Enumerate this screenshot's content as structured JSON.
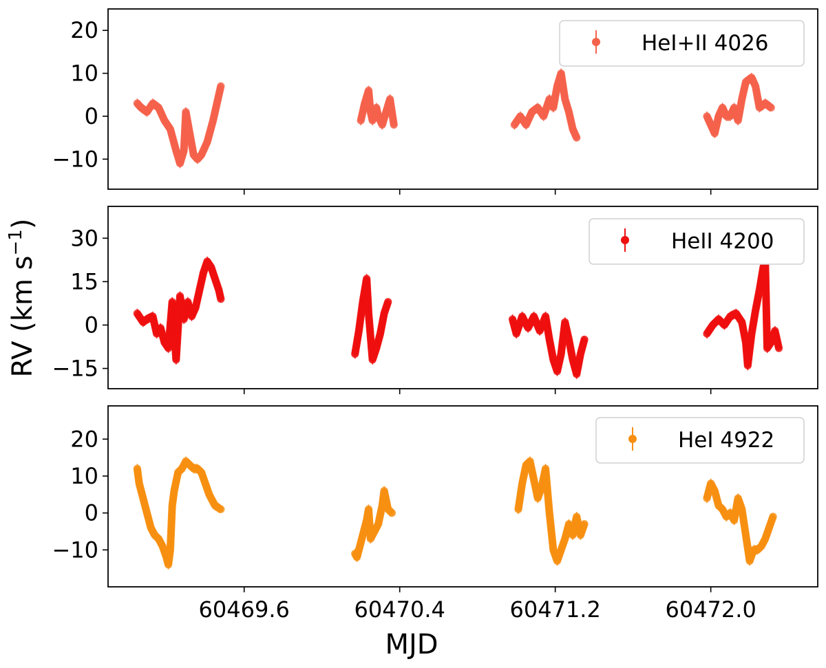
{
  "chart_data": {
    "type": "scatter",
    "layout": "3 stacked panels, shared x axis",
    "xlabel": "MJD",
    "ylabel": "RV (km s",
    "ylabel_superscript": "−1",
    "ylabel_close": ")",
    "xlim": [
      60468.9,
      60472.55
    ],
    "xticks": [
      60469.6,
      60470.4,
      60471.2,
      60472.0
    ],
    "xtick_labels": [
      "60469.6",
      "60470.4",
      "60471.2",
      "60472.0"
    ],
    "markers": "filled circles with vertical error bars",
    "legend_position": "upper right",
    "panels": [
      {
        "legend": "HeI+II 4026",
        "color": "#f4624b",
        "ylim": [
          -17,
          25
        ],
        "yticks": [
          -10,
          0,
          10,
          20
        ],
        "ytick_labels": [
          "−10",
          "0",
          "10",
          "20"
        ],
        "nights": [
          [
            [
              60469.05,
              3
            ],
            [
              60469.07,
              2
            ],
            [
              60469.1,
              1
            ],
            [
              60469.13,
              3
            ],
            [
              60469.16,
              2
            ],
            [
              60469.19,
              -1
            ],
            [
              60469.22,
              -3
            ],
            [
              60469.25,
              -8
            ],
            [
              60469.27,
              -11
            ],
            [
              60469.29,
              -8
            ],
            [
              60469.3,
              1
            ],
            [
              60469.32,
              -4
            ],
            [
              60469.34,
              -9
            ],
            [
              60469.36,
              -10
            ],
            [
              60469.38,
              -9
            ],
            [
              60469.41,
              -6
            ],
            [
              60469.44,
              -1
            ],
            [
              60469.46,
              3
            ],
            [
              60469.48,
              7
            ]
          ],
          [
            [
              60470.2,
              -1
            ],
            [
              60470.22,
              3
            ],
            [
              60470.24,
              6
            ],
            [
              60470.25,
              1
            ],
            [
              60470.26,
              -1
            ],
            [
              60470.28,
              2
            ],
            [
              60470.29,
              0
            ],
            [
              60470.31,
              -2
            ],
            [
              60470.33,
              1
            ],
            [
              60470.35,
              4
            ],
            [
              60470.37,
              -2
            ]
          ],
          [
            [
              60470.99,
              -2
            ],
            [
              60471.02,
              0
            ],
            [
              60471.05,
              -2
            ],
            [
              60471.08,
              1
            ],
            [
              60471.11,
              2
            ],
            [
              60471.14,
              0
            ],
            [
              60471.17,
              4
            ],
            [
              60471.19,
              2
            ],
            [
              60471.21,
              7
            ],
            [
              60471.23,
              10
            ],
            [
              60471.25,
              4
            ],
            [
              60471.27,
              1
            ],
            [
              60471.29,
              -3
            ],
            [
              60471.31,
              -5
            ]
          ],
          [
            [
              60471.98,
              0
            ],
            [
              60472.0,
              -2
            ],
            [
              60472.02,
              -4
            ],
            [
              60472.04,
              0
            ],
            [
              60472.06,
              2
            ],
            [
              60472.08,
              0
            ],
            [
              60472.1,
              0
            ],
            [
              60472.12,
              2
            ],
            [
              60472.14,
              -1
            ],
            [
              60472.16,
              4
            ],
            [
              60472.18,
              8
            ],
            [
              60472.21,
              9
            ],
            [
              60472.23,
              7
            ],
            [
              60472.25,
              2
            ],
            [
              60472.28,
              3
            ],
            [
              60472.31,
              2
            ]
          ]
        ]
      },
      {
        "legend": "HeII 4200",
        "color": "#ee0f0f",
        "ylim": [
          -22,
          41
        ],
        "yticks": [
          -15,
          0,
          15,
          30
        ],
        "ytick_labels": [
          "−15",
          "0",
          "15",
          "30"
        ],
        "nights": [
          [
            [
              60469.05,
              4
            ],
            [
              60469.08,
              1
            ],
            [
              60469.1,
              2
            ],
            [
              60469.13,
              3
            ],
            [
              60469.15,
              -3
            ],
            [
              60469.17,
              -1
            ],
            [
              60469.19,
              -6
            ],
            [
              60469.21,
              -8
            ],
            [
              60469.23,
              8
            ],
            [
              60469.25,
              -12
            ],
            [
              60469.27,
              10
            ],
            [
              60469.29,
              2
            ],
            [
              60469.31,
              8
            ],
            [
              60469.33,
              3
            ],
            [
              60469.35,
              6
            ],
            [
              60469.37,
              12
            ],
            [
              60469.39,
              18
            ],
            [
              60469.41,
              22
            ],
            [
              60469.43,
              20
            ],
            [
              60469.45,
              16
            ],
            [
              60469.47,
              12
            ],
            [
              60469.48,
              9
            ]
          ],
          [
            [
              60470.17,
              -10
            ],
            [
              60470.19,
              -2
            ],
            [
              60470.21,
              8
            ],
            [
              60470.23,
              16
            ],
            [
              60470.24,
              4
            ],
            [
              60470.26,
              -12
            ],
            [
              60470.28,
              -8
            ],
            [
              60470.3,
              -3
            ],
            [
              60470.32,
              4
            ],
            [
              60470.34,
              8
            ]
          ],
          [
            [
              60470.98,
              2
            ],
            [
              60471.0,
              -3
            ],
            [
              60471.03,
              3
            ],
            [
              60471.06,
              -1
            ],
            [
              60471.09,
              3
            ],
            [
              60471.12,
              -2
            ],
            [
              60471.15,
              3
            ],
            [
              60471.17,
              -5
            ],
            [
              60471.19,
              -12
            ],
            [
              60471.21,
              -16
            ],
            [
              60471.23,
              -10
            ],
            [
              60471.25,
              1
            ],
            [
              60471.27,
              -5
            ],
            [
              60471.29,
              -12
            ],
            [
              60471.31,
              -17
            ],
            [
              60471.33,
              -10
            ],
            [
              60471.35,
              -5
            ]
          ],
          [
            [
              60471.98,
              -3
            ],
            [
              60472.01,
              0
            ],
            [
              60472.04,
              2
            ],
            [
              60472.07,
              0
            ],
            [
              60472.1,
              3
            ],
            [
              60472.13,
              4
            ],
            [
              60472.16,
              1
            ],
            [
              60472.18,
              -6
            ],
            [
              60472.19,
              -14
            ],
            [
              60472.21,
              -3
            ],
            [
              60472.23,
              5
            ],
            [
              60472.25,
              12
            ],
            [
              60472.27,
              20
            ],
            [
              60472.28,
              22
            ],
            [
              60472.29,
              -8
            ],
            [
              60472.31,
              -6
            ],
            [
              60472.33,
              -2
            ],
            [
              60472.35,
              -8
            ]
          ]
        ]
      },
      {
        "legend": "HeI 4922",
        "color": "#f78f12",
        "ylim": [
          -20,
          29
        ],
        "yticks": [
          -10,
          0,
          10,
          20
        ],
        "ytick_labels": [
          "−10",
          "0",
          "10",
          "20"
        ],
        "nights": [
          [
            [
              60469.05,
              12
            ],
            [
              60469.06,
              8
            ],
            [
              60469.08,
              4
            ],
            [
              60469.1,
              0
            ],
            [
              60469.12,
              -4
            ],
            [
              60469.14,
              -6
            ],
            [
              60469.16,
              -7
            ],
            [
              60469.18,
              -9
            ],
            [
              60469.2,
              -12
            ],
            [
              60469.21,
              -14
            ],
            [
              60469.22,
              -10
            ],
            [
              60469.23,
              2
            ],
            [
              60469.24,
              6
            ],
            [
              60469.26,
              11
            ],
            [
              60469.28,
              12
            ],
            [
              60469.3,
              14
            ],
            [
              60469.32,
              13
            ],
            [
              60469.34,
              12
            ],
            [
              60469.36,
              12
            ],
            [
              60469.38,
              11
            ],
            [
              60469.4,
              8
            ],
            [
              60469.42,
              5
            ],
            [
              60469.45,
              2
            ],
            [
              60469.48,
              1
            ]
          ],
          [
            [
              60470.17,
              -11
            ],
            [
              60470.18,
              -12
            ],
            [
              60470.2,
              -8
            ],
            [
              60470.22,
              -4
            ],
            [
              60470.23,
              -2
            ],
            [
              60470.24,
              1
            ],
            [
              60470.25,
              -7
            ],
            [
              60470.27,
              -5
            ],
            [
              60470.29,
              -3
            ],
            [
              60470.31,
              2
            ],
            [
              60470.32,
              6
            ],
            [
              60470.34,
              1
            ],
            [
              60470.36,
              0
            ]
          ],
          [
            [
              60471.01,
              1
            ],
            [
              60471.03,
              8
            ],
            [
              60471.05,
              13
            ],
            [
              60471.07,
              14
            ],
            [
              60471.09,
              9
            ],
            [
              60471.11,
              4
            ],
            [
              60471.13,
              7
            ],
            [
              60471.15,
              12
            ],
            [
              60471.17,
              0
            ],
            [
              60471.19,
              -10
            ],
            [
              60471.21,
              -13
            ],
            [
              60471.23,
              -10
            ],
            [
              60471.25,
              -7
            ],
            [
              60471.27,
              -3
            ],
            [
              60471.29,
              -6
            ],
            [
              60471.31,
              -1
            ],
            [
              60471.33,
              -6
            ],
            [
              60471.35,
              -3
            ]
          ],
          [
            [
              60471.98,
              4
            ],
            [
              60472.0,
              8
            ],
            [
              60472.02,
              6
            ],
            [
              60472.04,
              2
            ],
            [
              60472.06,
              1
            ],
            [
              60472.08,
              -1
            ],
            [
              60472.1,
              0
            ],
            [
              60472.12,
              -2
            ],
            [
              60472.14,
              4
            ],
            [
              60472.16,
              1
            ],
            [
              60472.18,
              -6
            ],
            [
              60472.2,
              -13
            ],
            [
              60472.22,
              -10
            ],
            [
              60472.24,
              -10
            ],
            [
              60472.26,
              -9
            ],
            [
              60472.28,
              -7
            ],
            [
              60472.3,
              -4
            ],
            [
              60472.32,
              -1
            ]
          ]
        ]
      }
    ]
  }
}
